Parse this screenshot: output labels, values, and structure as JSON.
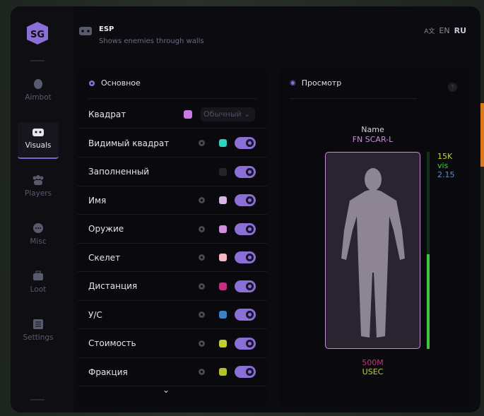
{
  "header": {
    "title": "ESP",
    "subtitle": "Shows enemies through walls",
    "languages": [
      "EN",
      "RU"
    ],
    "active_language": "RU"
  },
  "sidebar": {
    "items": [
      {
        "label": "Aimbot",
        "icon": "alien-icon"
      },
      {
        "label": "Visuals",
        "icon": "vr-headset-icon",
        "active": true
      },
      {
        "label": "Players",
        "icon": "users-icon"
      },
      {
        "label": "Misc",
        "icon": "dots-icon"
      },
      {
        "label": "Loot",
        "icon": "toolbox-icon"
      },
      {
        "label": "Settings",
        "icon": "list-icon"
      }
    ]
  },
  "main": {
    "title": "Основное",
    "box": {
      "label": "Квадрат",
      "color": "#c77ae0",
      "select_value": "Обычный"
    },
    "rows": [
      {
        "label": "Видимый квадрат",
        "color": "#2fd3bf",
        "gear": true,
        "enabled": true
      },
      {
        "label": "Заполненный",
        "color": "#24242b",
        "gear": false,
        "enabled": true
      },
      {
        "label": "Имя",
        "color": "#d7b6e4",
        "gear": true,
        "enabled": true
      },
      {
        "label": "Оружие",
        "color": "#d48ee0",
        "gear": true,
        "enabled": true
      },
      {
        "label": "Скелет",
        "color": "#f5b6c6",
        "gear": true,
        "enabled": true
      },
      {
        "label": "Дистанция",
        "color": "#c2307f",
        "gear": true,
        "enabled": true
      },
      {
        "label": "У/С",
        "color": "#3b82c4",
        "gear": true,
        "enabled": true
      },
      {
        "label": "Стоимость",
        "color": "#c2cf2c",
        "gear": true,
        "enabled": true
      },
      {
        "label": "Фракция",
        "color": "#b5c22a",
        "gear": true,
        "enabled": true
      }
    ]
  },
  "preview": {
    "title": "Просмотр",
    "help": "?",
    "name": "Name",
    "weapon": "FN SCAR-L",
    "value": "15K",
    "visible": "vis",
    "ratio": "2.15",
    "distance": "500M",
    "faction": "USEC",
    "health_fraction": 0.48,
    "colors": {
      "name": "#d8d0e0",
      "weapon": "#c58fd8",
      "value": "#c6cf3a",
      "visible": "#3ed23e",
      "ratio": "#5b8fd0",
      "distance": "#c2307f",
      "faction": "#c2cf2c"
    }
  }
}
